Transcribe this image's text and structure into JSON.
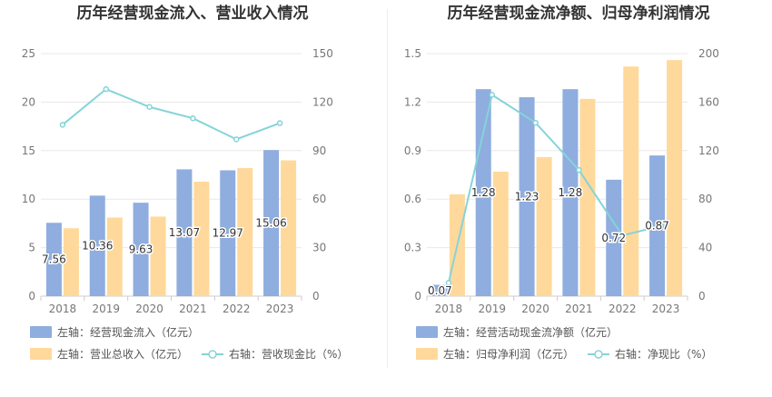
{
  "chart_data": [
    {
      "type": "bar",
      "title": "历年经营现金流入、营业收入情况",
      "categories": [
        "2018",
        "2019",
        "2020",
        "2021",
        "2022",
        "2023"
      ],
      "y_left_ticks": [
        "0",
        "5",
        "10",
        "15",
        "20",
        "25"
      ],
      "y_right_ticks": [
        "0",
        "30",
        "60",
        "90",
        "120",
        "150"
      ],
      "ylim_left": [
        0,
        25
      ],
      "ylim_right": [
        0,
        150
      ],
      "series": [
        {
          "name": "左轴：经营现金流入（亿元）",
          "type": "bar",
          "axis": "left",
          "color": "#8fadde",
          "values": [
            7.56,
            10.36,
            9.63,
            13.07,
            12.97,
            15.06
          ],
          "labels": [
            "7.56",
            "10.36",
            "9.63",
            "13.07",
            "12.97",
            "15.06"
          ]
        },
        {
          "name": "左轴：营业总收入（亿元）",
          "type": "bar",
          "axis": "left",
          "color": "#ffd99b",
          "values": [
            7.0,
            8.1,
            8.2,
            11.8,
            13.2,
            14.0
          ]
        },
        {
          "name": "右轴：营收现金比（%）",
          "type": "line",
          "axis": "right",
          "color": "#84d4d9",
          "values": [
            106,
            128,
            117,
            110,
            97,
            107
          ]
        }
      ]
    },
    {
      "type": "bar",
      "title": "历年经营现金流净额、归母净利润情况",
      "categories": [
        "2018",
        "2019",
        "2020",
        "2021",
        "2022",
        "2023"
      ],
      "y_left_ticks": [
        "0",
        "0.3",
        "0.6",
        "0.9",
        "1.2",
        "1.5"
      ],
      "y_right_ticks": [
        "0",
        "40",
        "80",
        "120",
        "160",
        "200"
      ],
      "ylim_left": [
        0,
        1.5
      ],
      "ylim_right": [
        0,
        200
      ],
      "series": [
        {
          "name": "左轴：经营活动现金流净额（亿元）",
          "type": "bar",
          "axis": "left",
          "color": "#8fadde",
          "values": [
            0.07,
            1.28,
            1.23,
            1.28,
            0.72,
            0.87
          ],
          "labels": [
            "0.07",
            "1.28",
            "1.23",
            "1.28",
            "0.72",
            "0.87"
          ]
        },
        {
          "name": "左轴：归母净利润（亿元）",
          "type": "bar",
          "axis": "left",
          "color": "#ffd99b",
          "values": [
            0.63,
            0.77,
            0.86,
            1.22,
            1.42,
            1.46
          ]
        },
        {
          "name": "右轴：净现比（%）",
          "type": "line",
          "axis": "right",
          "color": "#84d4d9",
          "values": [
            11,
            166,
            143,
            104,
            50,
            59
          ]
        }
      ]
    }
  ]
}
